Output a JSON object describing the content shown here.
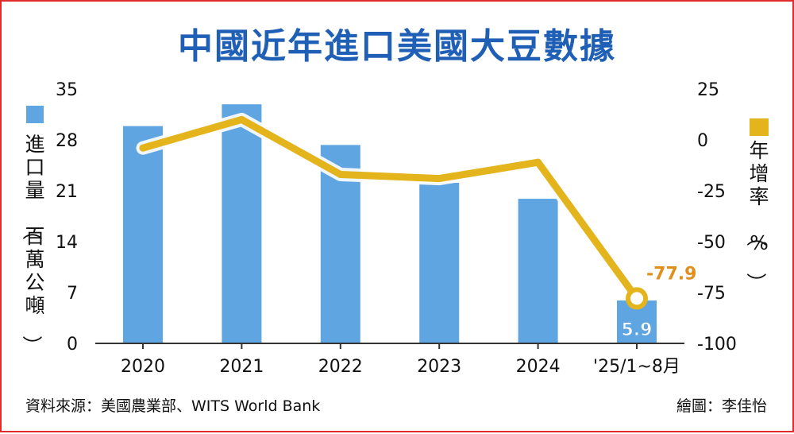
{
  "title": "中國近年進口美國大豆數據",
  "source": "資料來源：美國農業部、WITS World Bank",
  "credit": "繪圖：李佳怡",
  "colors": {
    "bar": "#5ea5e2",
    "line": "#e3b41b",
    "title": "#1f5fb5",
    "callout": "#e0901a",
    "border": "#e12a2a"
  },
  "chart_data": {
    "type": "bar",
    "categories": [
      "2020",
      "2021",
      "2022",
      "2023",
      "2024",
      "'25/1~8月"
    ],
    "y_left": {
      "label": "進口量（百萬公噸）",
      "range": [
        0,
        35
      ],
      "ticks": [
        "0",
        "7",
        "14",
        "21",
        "28",
        "35"
      ]
    },
    "y_right": {
      "label": "年增率（%）",
      "range": [
        -100,
        25
      ],
      "ticks": [
        "-100",
        "-75",
        "-50",
        "-25",
        "0",
        "25"
      ]
    },
    "series": [
      {
        "type": "bar",
        "axis": "left",
        "values": [
          29.9,
          32.9,
          27.3,
          22.1,
          19.9,
          5.9
        ]
      },
      {
        "type": "line",
        "axis": "right",
        "values": [
          -4,
          10,
          -17,
          -19,
          -11,
          -77.9
        ]
      }
    ],
    "data_labels": {
      "bar_last": "5.9",
      "line_last": "-77.9"
    },
    "grid": false,
    "legend": "axis-titles"
  }
}
